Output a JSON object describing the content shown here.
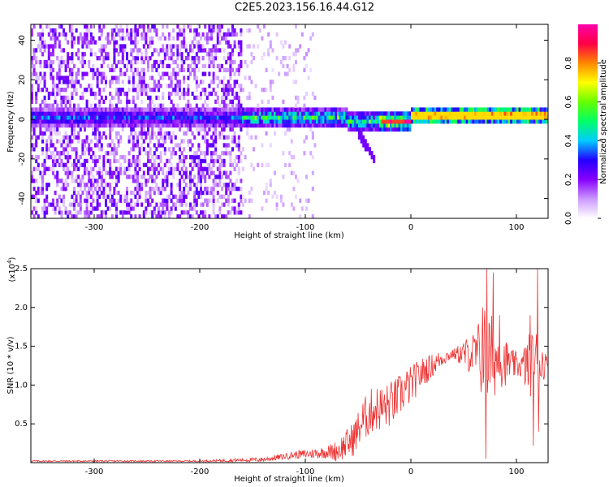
{
  "title": "C2E5.2023.156.16.44.G12",
  "chart_data": [
    {
      "type": "heatmap",
      "title": "C2E5.2023.156.16.44.G12",
      "xlabel": "Height of straight line (km)",
      "ylabel": "Frequency (Hz)",
      "xlim": [
        -360,
        130
      ],
      "ylim": [
        -50,
        48
      ],
      "xticks": [
        -300,
        -200,
        -100,
        0,
        100
      ],
      "yticks": [
        -40,
        -20,
        0,
        20,
        40
      ],
      "colorbar": {
        "label": "Normalized spectral amplitude",
        "range": [
          0.0,
          1.0
        ],
        "ticks": [
          0.0,
          0.2,
          0.4,
          0.6,
          0.8
        ],
        "colors": [
          "#ffffff",
          "#cc99ff",
          "#8800ff",
          "#2200ff",
          "#00ccff",
          "#00ff66",
          "#66ff00",
          "#ffff00",
          "#ff8800",
          "#ff0044",
          "#ff00aa"
        ]
      },
      "features": [
        {
          "name": "broadband noise",
          "x_range": [
            -360,
            -160
          ],
          "f_range": [
            -50,
            48
          ],
          "amplitude": 0.15
        },
        {
          "name": "sparse noise",
          "x_range": [
            -160,
            -90
          ],
          "f_range": [
            -50,
            48
          ],
          "amplitude": 0.05
        },
        {
          "name": "signal band",
          "x_range": [
            -360,
            125
          ],
          "f_center": 0,
          "f_width": 5
        },
        {
          "name": "drift tail",
          "x_from": -50,
          "x_to": -35,
          "f_from": -8,
          "f_to": -22
        }
      ]
    },
    {
      "type": "line",
      "xlabel": "Height of straight line (km)",
      "ylabel": "SNR (10 * v/v)",
      "y_multiplier": "(x10^4)",
      "xlim": [
        -360,
        130
      ],
      "ylim": [
        0,
        2.5
      ],
      "xticks": [
        -300,
        -200,
        -100,
        0,
        100
      ],
      "yticks": [
        0.5,
        1.0,
        1.5,
        2.0,
        2.5
      ],
      "color": "#ee3333",
      "envelope": {
        "x": [
          -360,
          -300,
          -200,
          -140,
          -110,
          -90,
          -70,
          -55,
          -45,
          -35,
          -25,
          -15,
          -5,
          0,
          10,
          20,
          30,
          40,
          50,
          60,
          70,
          80,
          90,
          100,
          110,
          118,
          122,
          130
        ],
        "y": [
          0.02,
          0.02,
          0.02,
          0.04,
          0.1,
          0.12,
          0.15,
          0.3,
          0.55,
          0.7,
          0.7,
          0.8,
          0.95,
          1.0,
          1.15,
          1.25,
          1.35,
          1.4,
          1.4,
          1.4,
          1.35,
          1.35,
          1.3,
          1.25,
          1.25,
          1.3,
          1.28,
          1.28
        ]
      },
      "noise": {
        "x": [
          -360,
          -200,
          -120,
          -80,
          -60,
          -40,
          -20,
          0,
          40,
          60,
          70,
          80,
          95,
          105,
          110,
          120,
          130
        ],
        "amp": [
          0.01,
          0.01,
          0.04,
          0.08,
          0.2,
          0.3,
          0.3,
          0.25,
          0.06,
          0.3,
          0.7,
          0.5,
          0.2,
          0.15,
          0.4,
          0.45,
          0.05
        ]
      },
      "spikes": [
        {
          "x": 68,
          "y": 2.0
        },
        {
          "x": 72,
          "y": 2.5
        },
        {
          "x": 78,
          "y": 2.45
        },
        {
          "x": 84,
          "y": 1.9
        },
        {
          "x": 113,
          "y": 1.9
        },
        {
          "x": 120,
          "y": 2.5
        },
        {
          "x": 71,
          "y": 0.05
        },
        {
          "x": 116,
          "y": 0.22
        },
        {
          "x": 121,
          "y": 0.4
        }
      ]
    }
  ]
}
